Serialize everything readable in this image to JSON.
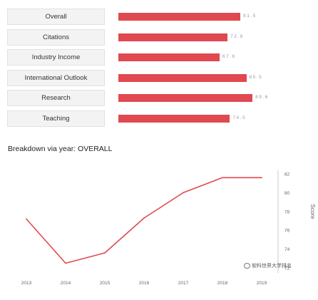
{
  "metrics": {
    "max_value": 100,
    "bar_color": "#e0494f",
    "items": [
      {
        "label": "Overall",
        "value": "81.5",
        "score": 81.5
      },
      {
        "label": "Citations",
        "value": "72.9",
        "score": 72.9
      },
      {
        "label": "Industry Income",
        "value": "67.6",
        "score": 67.6
      },
      {
        "label": "International Outlook",
        "value": "85.5",
        "score": 85.5
      },
      {
        "label": "Research",
        "value": "89.6",
        "score": 89.6
      },
      {
        "label": "Teaching",
        "value": "74.5",
        "score": 74.5
      }
    ]
  },
  "breakdown": {
    "title": "Breakdown via year: OVERALL"
  },
  "chart_data": {
    "type": "line",
    "title": "Breakdown via year: OVERALL",
    "ylabel": "Score",
    "xlabel": "",
    "x": [
      "2013",
      "2014",
      "2015",
      "2016",
      "2017",
      "2018",
      "2019"
    ],
    "x_ticks": [
      "2013",
      "2014",
      "2015",
      "2016",
      "2017",
      "2018",
      "2019"
    ],
    "series": [
      {
        "values": [
          77.2,
          72.5,
          73.6,
          77.3,
          80.0,
          81.6,
          81.6
        ],
        "color": "#e0494f"
      }
    ],
    "y_ticks": [
      "72",
      "74",
      "76",
      "78",
      "80",
      "82"
    ],
    "y_tick_values": [
      72,
      74,
      76,
      78,
      80,
      82
    ],
    "ylim": [
      72,
      82
    ],
    "yaxis_side": "right",
    "grid": false
  },
  "watermark": {
    "text": "软科世界大学排名"
  }
}
